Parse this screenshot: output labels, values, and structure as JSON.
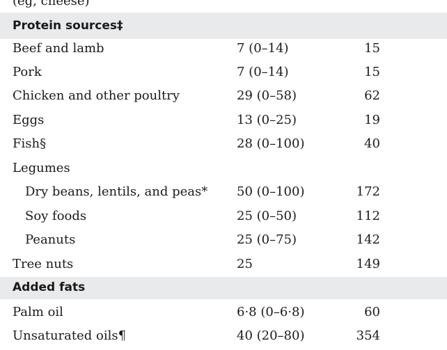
{
  "top_partial_text": "(eg, cheese)",
  "sections": [
    {
      "label": "Protein sources‡"
    },
    {
      "label": "Added fats"
    }
  ],
  "rows": [
    {
      "name": "Beef and lamb",
      "range": "7 (0–14)",
      "value": "15"
    },
    {
      "name": "Pork",
      "range": "7 (0–14)",
      "value": "15"
    },
    {
      "name": "Chicken and other poultry",
      "range": "29 (0–58)",
      "value": "62"
    },
    {
      "name": "Eggs",
      "range": "13 (0–25)",
      "value": "19"
    },
    {
      "name": "Fish§",
      "range": "28 (0–100)",
      "value": "40"
    },
    {
      "name": "Legumes",
      "range": "",
      "value": ""
    },
    {
      "name": "Dry beans, lentils, and peas*",
      "range": "50 (0–100)",
      "value": "172"
    },
    {
      "name": "Soy foods",
      "range": "25 (0–50)",
      "value": "112"
    },
    {
      "name": "Peanuts",
      "range": "25 (0–75)",
      "value": "142"
    },
    {
      "name": "Tree nuts",
      "range": "25",
      "value": "149"
    },
    {
      "name": "Palm oil",
      "range": "6·8 (0–6·8)",
      "value": "60"
    },
    {
      "name": "Unsaturated oils¶",
      "range": "40 (20–80)",
      "value": "354"
    }
  ]
}
